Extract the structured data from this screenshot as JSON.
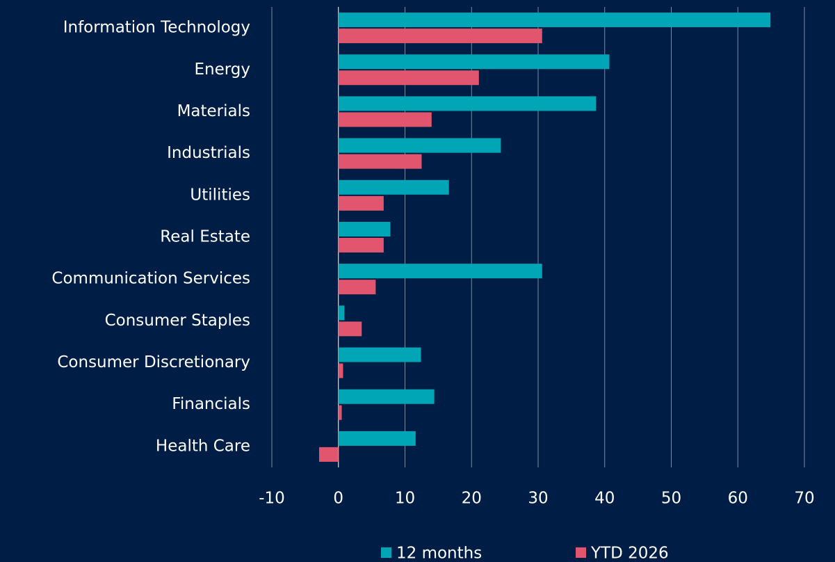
{
  "chart_data": {
    "type": "bar",
    "orientation": "horizontal",
    "categories": [
      "Information Technology",
      "Energy",
      "Materials",
      "Industrials",
      "Utilities",
      "Real Estate",
      "Communication Services",
      "Consumer Staples",
      "Consumer Discretionary",
      "Financials",
      "Health Care"
    ],
    "series": [
      {
        "name": "12 months",
        "color": "#00a6b6",
        "values": [
          64.9,
          40.7,
          38.7,
          24.4,
          16.6,
          7.8,
          30.6,
          0.9,
          12.4,
          14.4,
          11.6
        ]
      },
      {
        "name": "YTD 2026",
        "color": "#e1566e",
        "values": [
          30.6,
          21.1,
          14.0,
          12.5,
          6.8,
          6.8,
          5.6,
          3.5,
          0.7,
          0.5,
          -2.9
        ]
      }
    ],
    "xlim": [
      -10,
      70
    ],
    "xticks": [
      -10,
      0,
      10,
      20,
      30,
      40,
      50,
      60,
      70
    ],
    "grid": true,
    "legend": "bottom"
  }
}
